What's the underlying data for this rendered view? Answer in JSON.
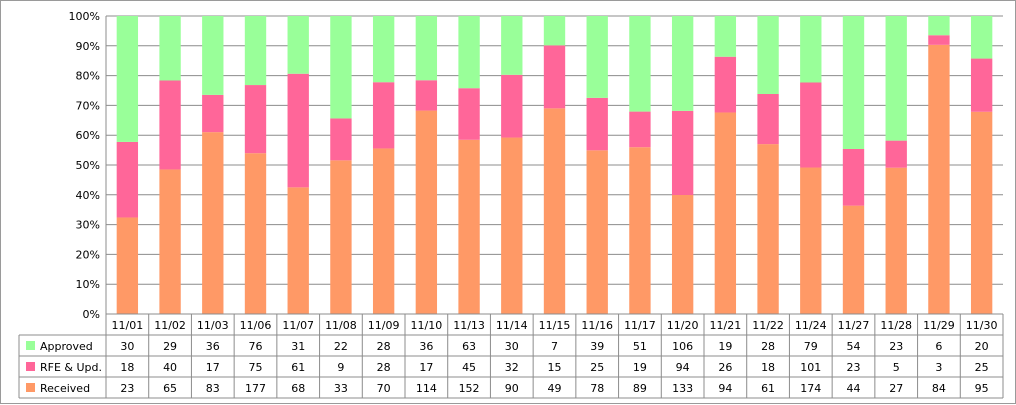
{
  "chart_data": {
    "type": "bar",
    "stacked": "percent",
    "title": "",
    "xlabel": "",
    "ylabel": "",
    "ylim": [
      0,
      100
    ],
    "y_ticks": [
      "0%",
      "10%",
      "20%",
      "30%",
      "40%",
      "50%",
      "60%",
      "70%",
      "80%",
      "90%",
      "100%"
    ],
    "grid": true,
    "legend": "data-table-left",
    "categories": [
      "11/01",
      "11/02",
      "11/03",
      "11/06",
      "11/07",
      "11/08",
      "11/09",
      "11/10",
      "11/13",
      "11/14",
      "11/15",
      "11/16",
      "11/17",
      "11/20",
      "11/21",
      "11/22",
      "11/24",
      "11/27",
      "11/28",
      "11/29",
      "11/30"
    ],
    "series": [
      {
        "name": "Received",
        "color": "#ff9966",
        "values": [
          23,
          65,
          83,
          177,
          68,
          33,
          70,
          114,
          152,
          90,
          49,
          78,
          89,
          133,
          94,
          61,
          174,
          44,
          27,
          84,
          95
        ]
      },
      {
        "name": "RFE & Upd.",
        "color": "#ff6699",
        "values": [
          18,
          40,
          17,
          75,
          61,
          9,
          28,
          17,
          45,
          32,
          15,
          25,
          19,
          94,
          26,
          18,
          101,
          23,
          5,
          3,
          25
        ]
      },
      {
        "name": "Approved",
        "color": "#99ff99",
        "values": [
          30,
          29,
          36,
          76,
          31,
          22,
          28,
          36,
          63,
          30,
          7,
          39,
          51,
          106,
          19,
          28,
          79,
          54,
          23,
          6,
          20
        ]
      }
    ],
    "table_row_order": [
      "Approved",
      "RFE & Upd.",
      "Received"
    ]
  }
}
